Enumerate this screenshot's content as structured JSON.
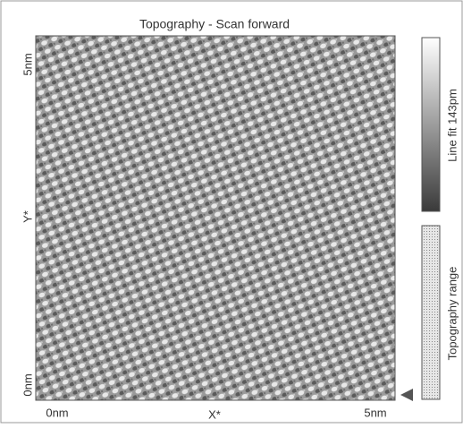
{
  "window": {
    "title": "Topography - Scan forward"
  },
  "axes": {
    "y_top": "5nm",
    "y_label": "Y*",
    "y_bottom": "0nm",
    "x_left": "0nm",
    "x_label": "X*",
    "x_right": "5nm"
  },
  "colorbar": {
    "label": "Line fit 143pm"
  },
  "range_bar": {
    "label": "Topography range"
  }
}
